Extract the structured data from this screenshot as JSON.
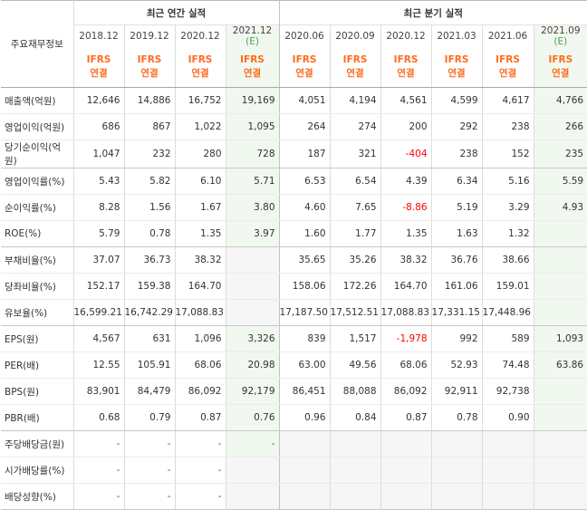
{
  "row_header_label": "주요재무정보",
  "groups": {
    "annual": "최근 연간 실적",
    "quarterly": "최근 분기 실적"
  },
  "periods": [
    "2018.12",
    "2019.12",
    "2020.12",
    "2021.12",
    "2020.06",
    "2020.09",
    "2020.12",
    "2021.03",
    "2021.06",
    "2021.09"
  ],
  "estimate_mark": "(E)",
  "ifrs_line1": "IFRS",
  "ifrs_line2": "연결",
  "rows": [
    {
      "label": "매출액(억원)",
      "values": [
        "12,646",
        "14,886",
        "16,752",
        "19,169",
        "4,051",
        "4,194",
        "4,561",
        "4,599",
        "4,617",
        "4,766"
      ]
    },
    {
      "label": "영업이익(억원)",
      "values": [
        "686",
        "867",
        "1,022",
        "1,095",
        "264",
        "274",
        "200",
        "292",
        "238",
        "266"
      ]
    },
    {
      "label": "당기순이익(억원)",
      "values": [
        "1,047",
        "232",
        "280",
        "728",
        "187",
        "321",
        "-404",
        "238",
        "152",
        "235"
      ]
    },
    {
      "label": "영업이익률(%)",
      "values": [
        "5.43",
        "5.82",
        "6.10",
        "5.71",
        "6.53",
        "6.54",
        "4.39",
        "6.34",
        "5.16",
        "5.59"
      ]
    },
    {
      "label": "순이익률(%)",
      "values": [
        "8.28",
        "1.56",
        "1.67",
        "3.80",
        "4.60",
        "7.65",
        "-8.86",
        "5.19",
        "3.29",
        "4.93"
      ]
    },
    {
      "label": "ROE(%)",
      "values": [
        "5.79",
        "0.78",
        "1.35",
        "3.97",
        "1.60",
        "1.77",
        "1.35",
        "1.63",
        "1.32",
        ""
      ]
    },
    {
      "label": "부채비율(%)",
      "values": [
        "37.07",
        "36.73",
        "38.32",
        "",
        "35.65",
        "35.26",
        "38.32",
        "36.76",
        "38.66",
        ""
      ]
    },
    {
      "label": "당좌비율(%)",
      "values": [
        "152.17",
        "159.38",
        "164.70",
        "",
        "158.06",
        "172.26",
        "164.70",
        "161.06",
        "159.01",
        ""
      ]
    },
    {
      "label": "유보율(%)",
      "values": [
        "16,599.21",
        "16,742.29",
        "17,088.83",
        "",
        "17,187.50",
        "17,512.51",
        "17,088.83",
        "17,331.15",
        "17,448.96",
        ""
      ]
    },
    {
      "label": "EPS(원)",
      "values": [
        "4,567",
        "631",
        "1,096",
        "3,326",
        "839",
        "1,517",
        "-1,978",
        "992",
        "589",
        "1,093"
      ]
    },
    {
      "label": "PER(배)",
      "values": [
        "12.55",
        "105.91",
        "68.06",
        "20.98",
        "63.00",
        "49.56",
        "68.06",
        "52.93",
        "74.48",
        "63.86"
      ]
    },
    {
      "label": "BPS(원)",
      "values": [
        "83,901",
        "84,479",
        "86,092",
        "92,179",
        "86,451",
        "88,088",
        "86,092",
        "92,911",
        "92,738",
        ""
      ]
    },
    {
      "label": "PBR(배)",
      "values": [
        "0.68",
        "0.79",
        "0.87",
        "0.76",
        "0.96",
        "0.84",
        "0.87",
        "0.78",
        "0.90",
        ""
      ]
    },
    {
      "label": "주당배당금(원)",
      "values": [
        "-",
        "-",
        "-",
        "-",
        "",
        "",
        "",
        "",
        "",
        ""
      ]
    },
    {
      "label": "시가배당률(%)",
      "values": [
        "-",
        "-",
        "-",
        "",
        "",
        "",
        "",
        "",
        "",
        ""
      ]
    },
    {
      "label": "배당성향(%)",
      "values": [
        "-",
        "-",
        "-",
        "",
        "",
        "",
        "",
        "",
        "",
        ""
      ]
    }
  ],
  "colors": {
    "ifrs": "#ff6b1f",
    "estimate": "#4aa14f",
    "negative": "#ff0000",
    "estimate_bg": "#f1f8ef",
    "na_bg": "#f6f6f6"
  }
}
